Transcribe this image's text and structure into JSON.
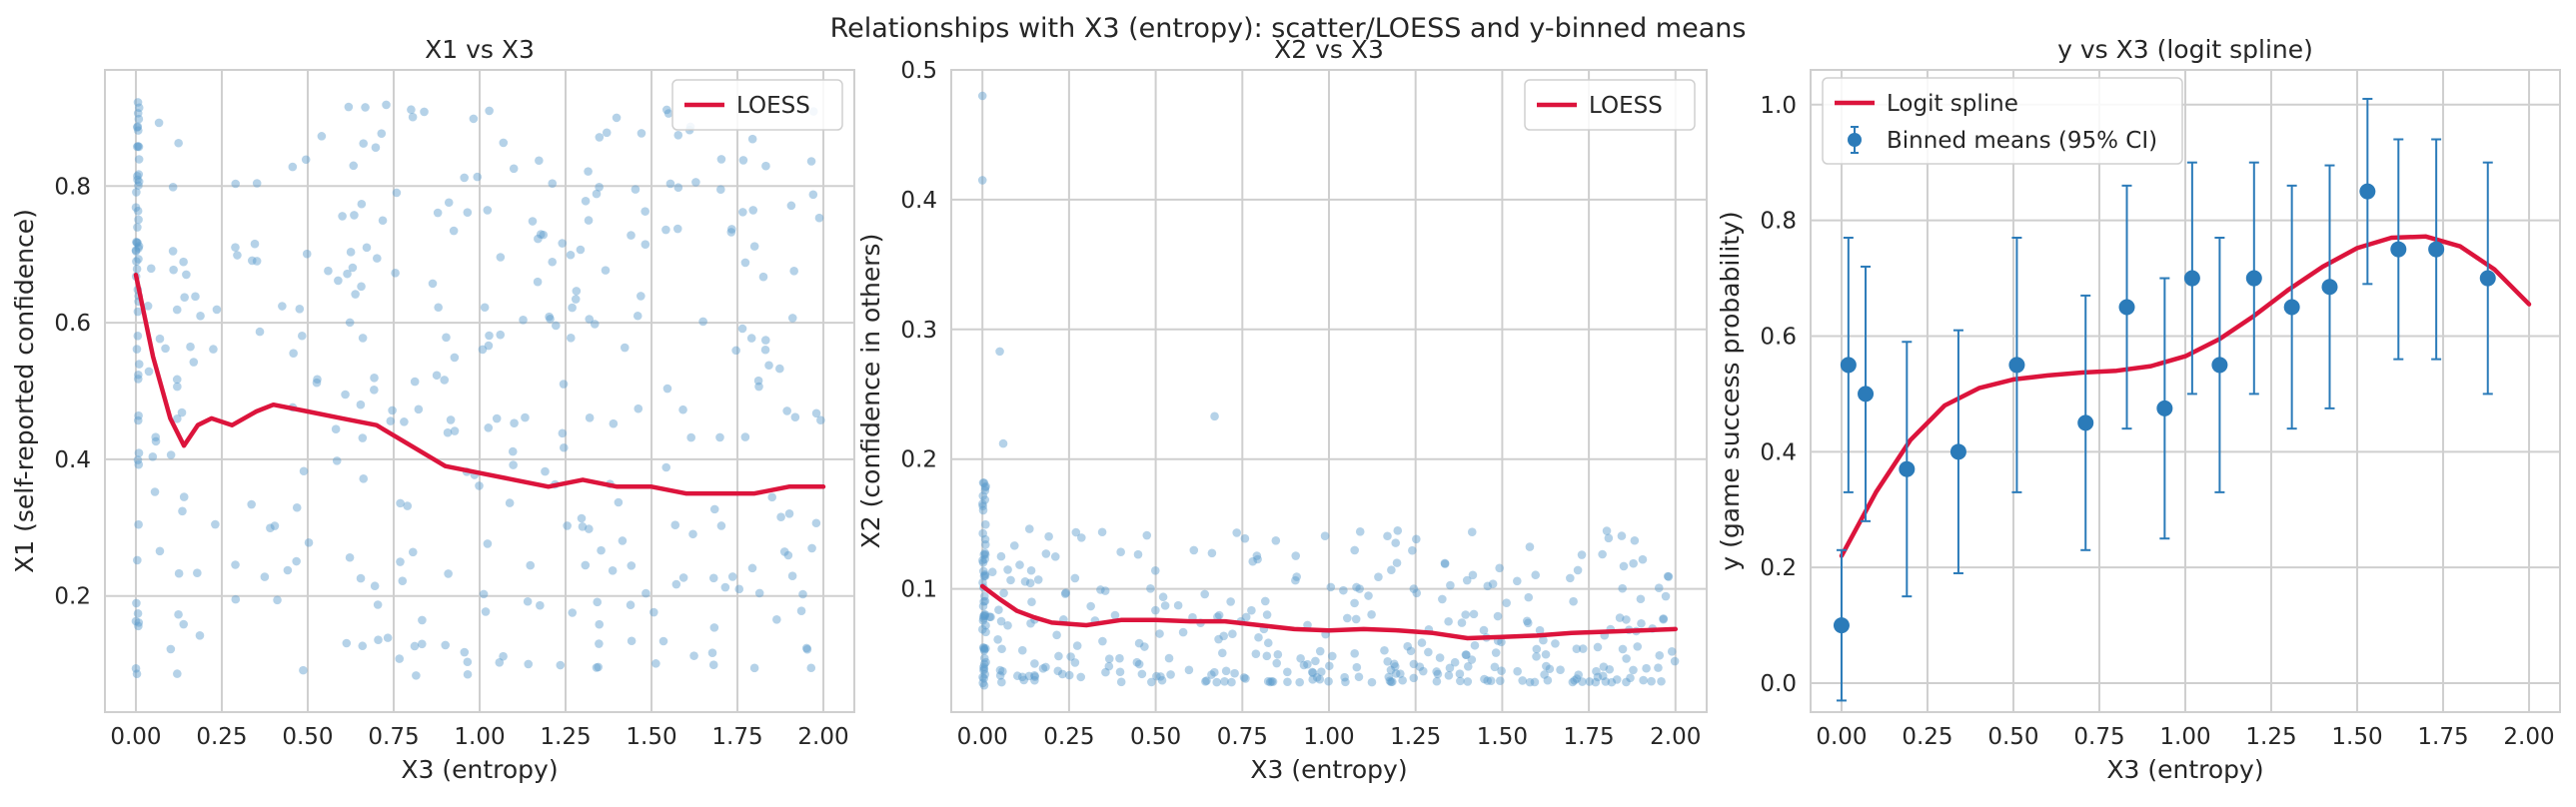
{
  "suptitle": "Relationships with X3 (entropy): scatter/LOESS and y-binned means",
  "colors": {
    "scatter": "#5b9ccc",
    "loess": "#dc143c",
    "binned": "#2b7bb9",
    "grid": "#cfcfcf",
    "frame": "#cfcfcf"
  },
  "chart_data": [
    {
      "type": "scatter",
      "title": "X1 vs X3",
      "xlabel": "X3 (entropy)",
      "ylabel": "X1 (self-reported confidence)",
      "xlim": [
        -0.09,
        2.09
      ],
      "ylim": [
        0.03,
        0.97
      ],
      "xticks": [
        0.0,
        0.25,
        0.5,
        0.75,
        1.0,
        1.25,
        1.5,
        1.75,
        2.0
      ],
      "xtick_labels": [
        "0.00",
        "0.25",
        "0.50",
        "0.75",
        "1.00",
        "1.25",
        "1.50",
        "1.75",
        "2.00"
      ],
      "yticks": [
        0.2,
        0.4,
        0.6,
        0.8
      ],
      "ytick_labels": [
        "0.2",
        "0.4",
        "0.6",
        "0.8"
      ],
      "grid": true,
      "legend": {
        "position": "upper-right",
        "entries": [
          "LOESS"
        ]
      },
      "series": [
        {
          "name": "LOESS",
          "kind": "line",
          "x": [
            0.0,
            0.05,
            0.1,
            0.14,
            0.18,
            0.22,
            0.28,
            0.35,
            0.4,
            0.5,
            0.6,
            0.7,
            0.8,
            0.9,
            1.0,
            1.1,
            1.2,
            1.3,
            1.4,
            1.5,
            1.6,
            1.7,
            1.8,
            1.9,
            2.0
          ],
          "y": [
            0.67,
            0.55,
            0.46,
            0.42,
            0.45,
            0.46,
            0.45,
            0.47,
            0.48,
            0.47,
            0.46,
            0.45,
            0.42,
            0.39,
            0.38,
            0.37,
            0.36,
            0.37,
            0.36,
            0.36,
            0.35,
            0.35,
            0.35,
            0.36,
            0.36
          ]
        }
      ]
    },
    {
      "type": "scatter",
      "title": "X2 vs X3",
      "xlabel": "X3 (entropy)",
      "ylabel": "X2 (confidence in others)",
      "xlim": [
        -0.09,
        2.09
      ],
      "ylim": [
        0.005,
        0.5
      ],
      "xticks": [
        0.0,
        0.25,
        0.5,
        0.75,
        1.0,
        1.25,
        1.5,
        1.75,
        2.0
      ],
      "xtick_labels": [
        "0.00",
        "0.25",
        "0.50",
        "0.75",
        "1.00",
        "1.25",
        "1.50",
        "1.75",
        "2.00"
      ],
      "yticks": [
        0.1,
        0.2,
        0.3,
        0.4,
        0.5
      ],
      "ytick_labels": [
        "0.1",
        "0.2",
        "0.3",
        "0.4",
        "0.5"
      ],
      "grid": true,
      "legend": {
        "position": "upper-right",
        "entries": [
          "LOESS"
        ]
      },
      "series": [
        {
          "name": "LOESS",
          "kind": "line",
          "x": [
            0.0,
            0.05,
            0.1,
            0.15,
            0.2,
            0.3,
            0.4,
            0.5,
            0.6,
            0.7,
            0.8,
            0.9,
            1.0,
            1.1,
            1.2,
            1.3,
            1.4,
            1.5,
            1.6,
            1.7,
            1.8,
            1.9,
            2.0
          ],
          "y": [
            0.102,
            0.092,
            0.083,
            0.078,
            0.074,
            0.072,
            0.076,
            0.076,
            0.075,
            0.075,
            0.072,
            0.069,
            0.068,
            0.069,
            0.068,
            0.066,
            0.062,
            0.063,
            0.064,
            0.066,
            0.067,
            0.068,
            0.069
          ]
        }
      ]
    },
    {
      "type": "line",
      "title": "y vs X3 (logit spline)",
      "xlabel": "X3 (entropy)",
      "ylabel": "y (game success probability)",
      "xlim": [
        -0.09,
        2.09
      ],
      "ylim": [
        -0.05,
        1.06
      ],
      "xticks": [
        0.0,
        0.25,
        0.5,
        0.75,
        1.0,
        1.25,
        1.5,
        1.75,
        2.0
      ],
      "xtick_labels": [
        "0.00",
        "0.25",
        "0.50",
        "0.75",
        "1.00",
        "1.25",
        "1.50",
        "1.75",
        "2.00"
      ],
      "yticks": [
        0.0,
        0.2,
        0.4,
        0.6,
        0.8,
        1.0
      ],
      "ytick_labels": [
        "0.0",
        "0.2",
        "0.4",
        "0.6",
        "0.8",
        "1.0"
      ],
      "grid": true,
      "legend": {
        "position": "upper-left",
        "entries": [
          "Logit spline",
          "Binned means (95% CI)"
        ]
      },
      "series": [
        {
          "name": "Logit spline",
          "kind": "line",
          "x": [
            0.0,
            0.1,
            0.2,
            0.3,
            0.4,
            0.5,
            0.6,
            0.7,
            0.8,
            0.9,
            1.0,
            1.1,
            1.2,
            1.3,
            1.4,
            1.5,
            1.6,
            1.7,
            1.8,
            1.9,
            2.0
          ],
          "y": [
            0.22,
            0.33,
            0.42,
            0.48,
            0.51,
            0.525,
            0.532,
            0.537,
            0.54,
            0.548,
            0.565,
            0.595,
            0.635,
            0.68,
            0.72,
            0.752,
            0.77,
            0.772,
            0.755,
            0.715,
            0.655
          ]
        },
        {
          "name": "Binned means (95% CI)",
          "kind": "errorbar",
          "x": [
            0.0,
            0.02,
            0.07,
            0.19,
            0.34,
            0.51,
            0.71,
            0.83,
            0.94,
            1.02,
            1.1,
            1.2,
            1.31,
            1.42,
            1.53,
            1.62,
            1.73,
            1.88
          ],
          "y": [
            0.1,
            0.55,
            0.5,
            0.37,
            0.4,
            0.55,
            0.45,
            0.65,
            0.475,
            0.7,
            0.55,
            0.7,
            0.65,
            0.685,
            0.85,
            0.75,
            0.75,
            0.7
          ],
          "lo": [
            -0.03,
            0.33,
            0.28,
            0.15,
            0.19,
            0.33,
            0.23,
            0.44,
            0.25,
            0.5,
            0.33,
            0.5,
            0.44,
            0.475,
            0.69,
            0.56,
            0.56,
            0.5
          ],
          "hi": [
            0.23,
            0.77,
            0.72,
            0.59,
            0.61,
            0.77,
            0.67,
            0.86,
            0.7,
            0.9,
            0.77,
            0.9,
            0.86,
            0.895,
            1.01,
            0.94,
            0.94,
            0.9
          ]
        }
      ]
    }
  ]
}
